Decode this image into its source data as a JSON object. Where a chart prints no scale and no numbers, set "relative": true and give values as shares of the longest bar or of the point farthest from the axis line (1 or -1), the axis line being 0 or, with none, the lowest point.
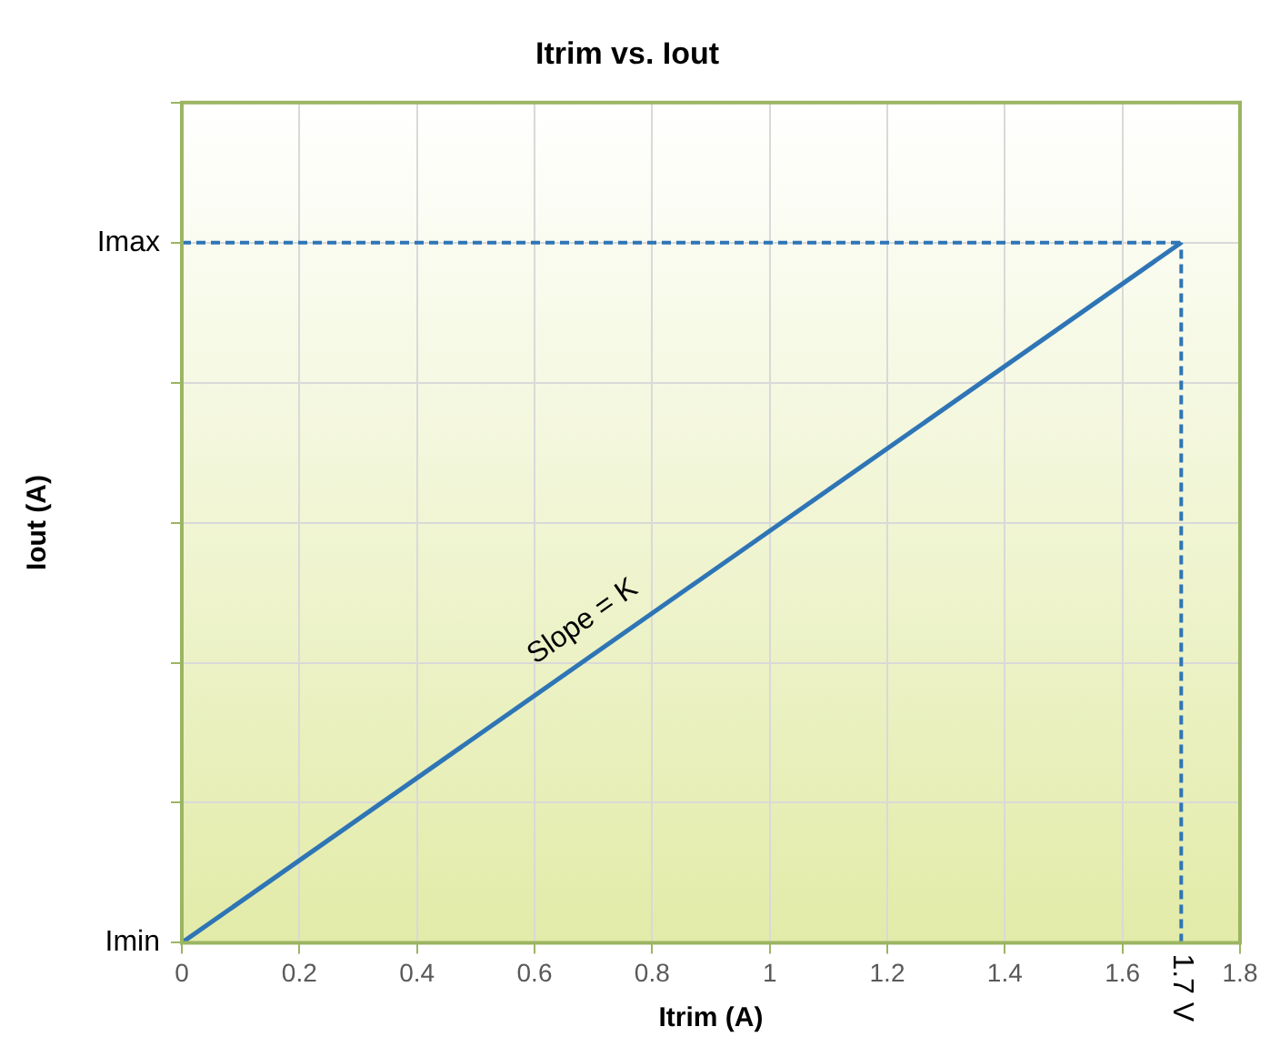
{
  "chart_data": {
    "type": "line",
    "title": "Itrim vs. Iout",
    "xlabel": "Itrim (A)",
    "ylabel": "Iout (A)",
    "x": [
      0,
      1.7
    ],
    "series": [
      {
        "color": "#2e75b6",
        "values": [
          0,
          1
        ]
      }
    ],
    "xlim": [
      0,
      1.8
    ],
    "xticks": [
      0,
      0.2,
      0.4,
      0.6,
      0.8,
      1,
      1.2,
      1.4,
      1.6,
      1.8
    ],
    "relative": true,
    "ref_lines": [
      {
        "axis": "x",
        "value": 1.7,
        "label": "1.7 V",
        "color": "#2e75b6",
        "line_style": "dashed"
      },
      {
        "axis": "y",
        "value": 1,
        "label": null,
        "color": "#2e75b6",
        "line_style": "dashed"
      }
    ],
    "annotations": [
      "Imin",
      "Imax",
      "Slope = K"
    ],
    "grid": true,
    "legend": false,
    "marker": "none",
    "line_style": "solid"
  }
}
